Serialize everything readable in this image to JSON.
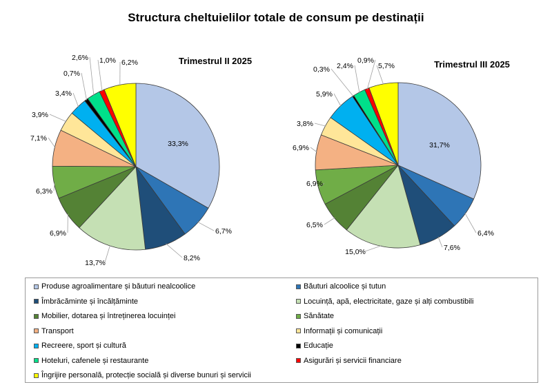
{
  "title": "Structura cheltuielilor totale de consum pe destinații",
  "categories": [
    {
      "name": "Produse agroalimentare și băuturi nealcoolice",
      "color": "#b4c7e7"
    },
    {
      "name": "Băuturi alcoolice și tutun",
      "color": "#2e75b6"
    },
    {
      "name": "Îmbrăcăminte și încălțăminte",
      "color": "#1f4e79"
    },
    {
      "name": "Locuință, apă, electricitate, gaze și alți combustibili",
      "color": "#c5e0b4"
    },
    {
      "name": "Mobilier,  dotarea și întreținerea locuinței",
      "color": "#548235"
    },
    {
      "name": "Sănătate",
      "color": "#70ad47"
    },
    {
      "name": "Transport",
      "color": "#f4b183"
    },
    {
      "name": "Informații și comunicații",
      "color": "#ffe699"
    },
    {
      "name": "Recreere, sport și cultură",
      "color": "#00b0f0"
    },
    {
      "name": "Educație",
      "color": "#000000"
    },
    {
      "name": "Hoteluri, cafenele și restaurante",
      "color": "#00e08a"
    },
    {
      "name": "Asigurări și servicii financiare",
      "color": "#ff0000"
    },
    {
      "name": "Îngrijire personală, protecție socială și diverse bunuri și servicii",
      "color": "#ffff00"
    }
  ],
  "chart_data": [
    {
      "type": "pie",
      "title": "Trimestrul  II 2025",
      "unit": "%",
      "values": [
        33.3,
        6.7,
        8.2,
        13.7,
        6.9,
        6.3,
        7.1,
        3.9,
        3.4,
        0.7,
        2.6,
        1.0,
        6.2
      ],
      "labels": [
        "33,3%",
        "6,7%",
        "8,2%",
        "13,7%",
        "6,9%",
        "6,3%",
        "7,1%",
        "3,9%",
        "3,4%",
        "0,7%",
        "2,6%",
        "1,0%",
        "6,2%"
      ]
    },
    {
      "type": "pie",
      "title": "Trimestrul  III 2025",
      "unit": "%",
      "values": [
        31.7,
        6.4,
        7.6,
        15.0,
        6.5,
        6.9,
        6.9,
        3.8,
        5.9,
        0.3,
        2.4,
        0.9,
        5.7
      ],
      "labels": [
        "31,7%",
        "6,4%",
        "7,6%",
        "15,0%",
        "6,5%",
        "6,9%",
        "6,9%",
        "3,8%",
        "5,9%",
        "0,3%",
        "2,4%",
        "0,9%",
        "5,7%"
      ]
    }
  ]
}
